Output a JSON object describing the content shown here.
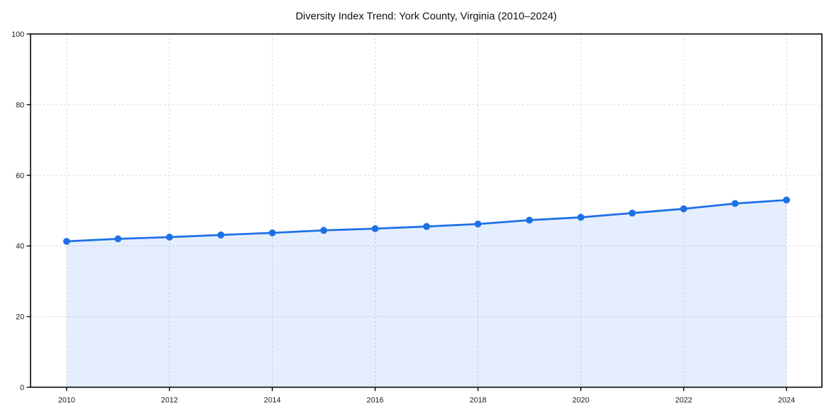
{
  "chart_data": {
    "type": "line",
    "title": "Diversity Index Trend: York County, Virginia (2010–2024)",
    "x": [
      2010,
      2011,
      2012,
      2013,
      2014,
      2015,
      2016,
      2017,
      2018,
      2019,
      2020,
      2021,
      2022,
      2023,
      2024
    ],
    "series": [
      {
        "name": "Diversity Index",
        "values": [
          41.3,
          42.0,
          42.5,
          43.1,
          43.7,
          44.4,
          44.9,
          45.5,
          46.2,
          47.3,
          48.1,
          49.3,
          50.5,
          52.0,
          53.0
        ]
      }
    ],
    "xlabel": "",
    "ylabel": "",
    "ylim": [
      0,
      100
    ],
    "yticks": [
      0,
      20,
      40,
      60,
      80,
      100
    ],
    "xticks": [
      2010,
      2012,
      2014,
      2016,
      2018,
      2020,
      2022,
      2024
    ],
    "grid": true,
    "grid_style": "dashed",
    "legend": false,
    "marker": "circle",
    "line_color": "#1e70e8",
    "fill_opacity": 0.12,
    "grid_color": "#d9d9d9",
    "axis_color": "#000000",
    "text_color": "#1a1a1a"
  }
}
